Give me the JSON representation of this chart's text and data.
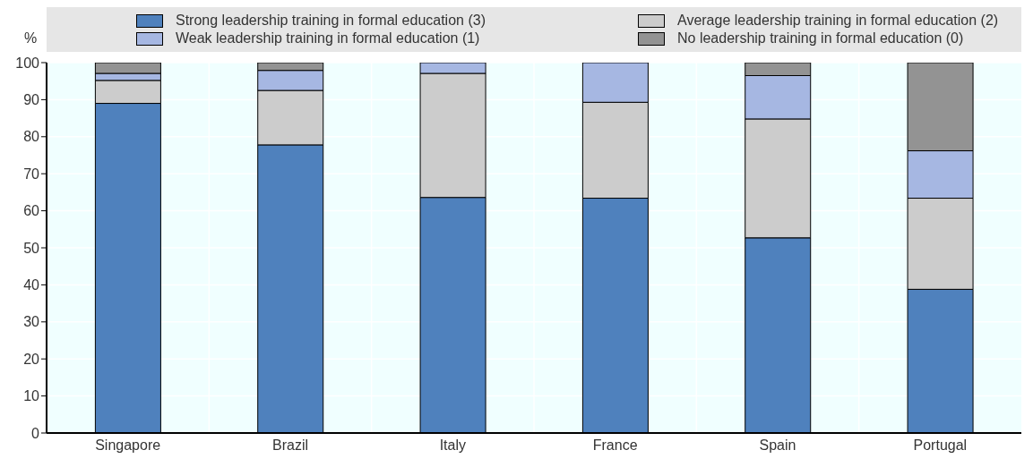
{
  "chart_data": {
    "type": "bar",
    "stacked": true,
    "ylabel": "%",
    "categories": [
      "Singapore",
      "Brazil",
      "Italy",
      "France",
      "Spain",
      "Portugal"
    ],
    "series": [
      {
        "name": "Strong leadership training in formal education (3)",
        "color": "#4f81bd",
        "values": [
          89.0,
          77.8,
          63.6,
          63.4,
          52.7,
          38.8
        ]
      },
      {
        "name": "Average leadership training in formal education (2)",
        "color": "#cccccc",
        "values": [
          6.2,
          14.7,
          33.5,
          25.9,
          32.1,
          24.6
        ]
      },
      {
        "name": "Weak leadership training in formal education (1)",
        "color": "#a6b7e2",
        "values": [
          1.9,
          5.4,
          2.9,
          10.7,
          11.7,
          12.8
        ]
      },
      {
        "name": "No leadership training in formal education (0)",
        "color": "#939393",
        "values": [
          2.9,
          2.1,
          null,
          null,
          3.5,
          23.8
        ]
      }
    ],
    "ylim": [
      0,
      100
    ],
    "yticks": [
      0,
      10,
      20,
      30,
      40,
      50,
      60,
      70,
      80,
      90,
      100
    ],
    "grid": true,
    "legend": "top"
  }
}
